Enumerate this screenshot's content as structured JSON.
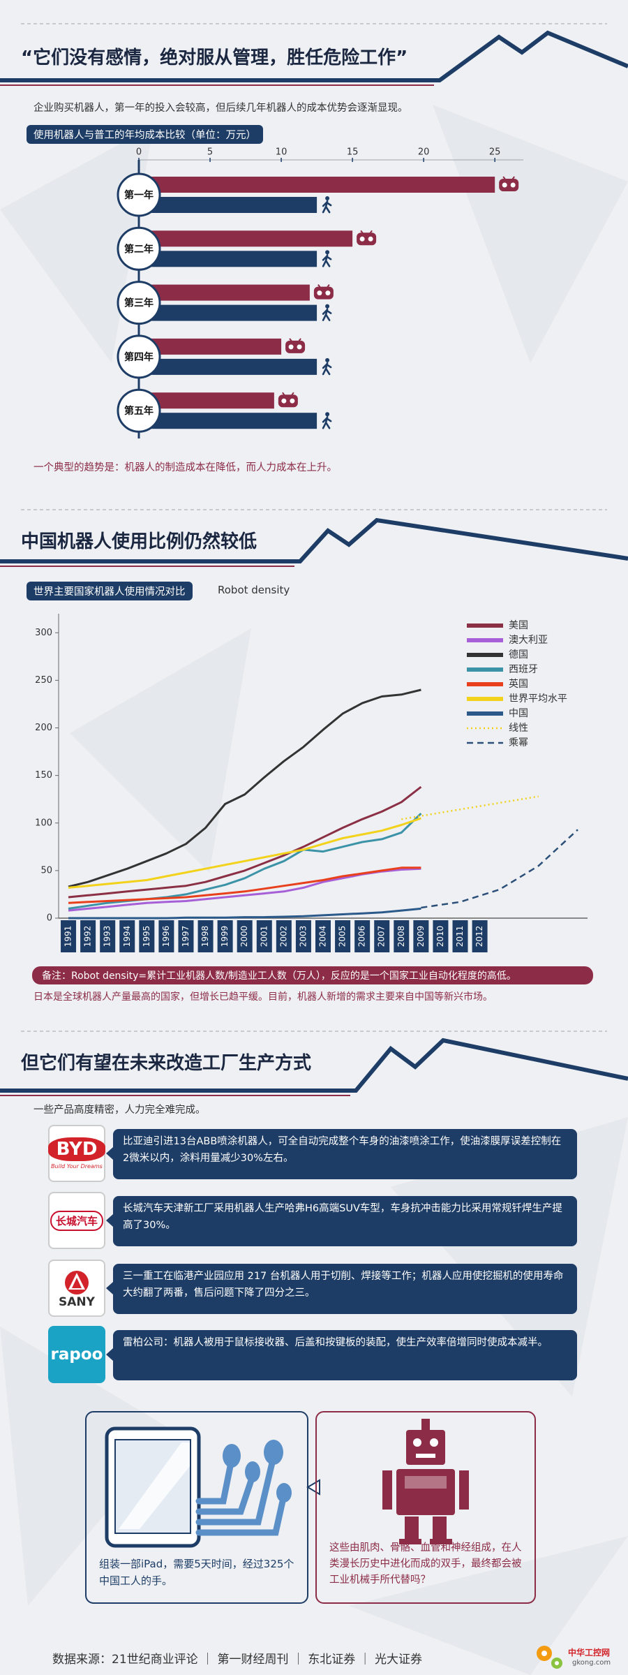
{
  "sections": [
    {
      "heading": "“它们没有感情，绝对服从管理，胜任危险工作”",
      "intro": "企业购买机器人，第一年的投入会较高，但后续几年机器人的成本优势会逐渐显现。",
      "note": "一个典型的趋势是：机器人的制造成本在降低，而人力成本在上升。"
    },
    {
      "heading": "中国机器人使用比例仍然较低",
      "notes": [
        "备注：Robot density=累计工业机器人数/制造业工人数（万人），反应的是一个国家工业自动化程度的高低。",
        "日本是全球机器人产量最高的国家，但增长已趋平缓。目前，机器人新增的需求主要来自中国等新兴市场。"
      ]
    },
    {
      "heading": "但它们有望在未来改造工厂生产方式",
      "intro": "一些产品高度精密，人力完全难完成。",
      "items": [
        {
          "logo": "BYD",
          "logo_sub": "Build Your Dreams",
          "text": "比亚迪引进13台ABB喷涂机器人，可全自动完成整个车身的油漆喷涂工作，使油漆膜厚误差控制在2微米以内，涂料用量减少30%左右。"
        },
        {
          "logo": "长城汽车",
          "text": "长城汽车天津新工厂采用机器人生产哈弗H6高端SUV车型，车身抗冲击能力比采用常规钎焊生产提高了30%。"
        },
        {
          "logo": "SANY",
          "text": "三一重工在临港产业园应用 217 台机器人用于切削、焊接等工作；机器人应用使挖掘机的使用寿命大约翻了两番，售后问题下降了四分之三。"
        },
        {
          "logo": "rapoo",
          "text": "雷柏公司：机器人被用于鼠标接收器、后盖和按键板的装配，使生产效率倍增同时使成本减半。"
        }
      ]
    }
  ],
  "panels": [
    {
      "text": "组装一部iPad，需要5天时间，经过325个中国工人的手。"
    },
    {
      "text": "这些由肌肉、骨骼、血管和神经组成，在人类漫长历史中进化而成的双手，最终都会被工业机械手所代替吗？"
    }
  ],
  "footer": "数据来源：21世纪商业评论 ｜ 第一财经周刊 ｜ 东北证券 ｜ 光大证券",
  "watermark": [
    "中华工控网",
    "gkong.com"
  ],
  "chart_data": [
    {
      "type": "bar",
      "orientation": "horizontal",
      "title": "使用机器人与普工的年均成本比较（单位：万元）",
      "categories": [
        "第一年",
        "第二年",
        "第三年",
        "第四年",
        "第五年"
      ],
      "series": [
        {
          "color": "#8c2c47",
          "values": [
            25,
            15,
            12,
            10,
            9.5
          ]
        },
        {
          "color": "#1e3d66",
          "values": [
            12.5,
            12.5,
            12.5,
            12.5,
            12.5
          ]
        }
      ],
      "xlim": [
        0,
        27
      ],
      "xticks": [
        0,
        5,
        10,
        15,
        20,
        25
      ]
    },
    {
      "type": "line",
      "title": "世界主要国家机器人使用情况对比",
      "subtitle": "Robot density",
      "x": [
        1991,
        1992,
        1993,
        1994,
        1995,
        1996,
        1997,
        1998,
        1999,
        2000,
        2001,
        2002,
        2003,
        2004,
        2005,
        2006,
        2007,
        2008,
        2009
      ],
      "series": [
        {
          "name": "美国",
          "color": "#8b2f45",
          "values": [
            22,
            24,
            26,
            28,
            30,
            32,
            34,
            38,
            44,
            50,
            58,
            66,
            75,
            85,
            95,
            104,
            112,
            122,
            138
          ]
        },
        {
          "name": "澳大利亚",
          "color": "#a65fd6",
          "values": [
            8,
            10,
            12,
            14,
            16,
            17,
            18,
            20,
            22,
            24,
            26,
            28,
            32,
            38,
            42,
            46,
            49,
            51,
            52
          ]
        },
        {
          "name": "德国",
          "color": "#333333",
          "values": [
            33,
            38,
            45,
            52,
            60,
            68,
            78,
            95,
            120,
            130,
            148,
            165,
            180,
            198,
            215,
            226,
            233,
            235,
            240
          ]
        },
        {
          "name": "西班牙",
          "color": "#3c93a8",
          "values": [
            10,
            13,
            16,
            18,
            20,
            22,
            25,
            30,
            35,
            42,
            52,
            60,
            72,
            70,
            75,
            80,
            83,
            90,
            110
          ]
        },
        {
          "name": "英国",
          "color": "#e8401c",
          "values": [
            16,
            17,
            18,
            19,
            20,
            21,
            22,
            24,
            26,
            28,
            31,
            34,
            37,
            40,
            44,
            47,
            50,
            53,
            53
          ]
        },
        {
          "name": "世界平均水平",
          "color": "#f2d21b",
          "values": [
            32,
            34,
            36,
            38,
            40,
            44,
            48,
            52,
            56,
            60,
            64,
            68,
            72,
            78,
            84,
            88,
            92,
            98,
            105
          ]
        },
        {
          "name": "中国",
          "color": "#2b5a8a",
          "values": [
            0,
            0,
            0,
            0,
            0,
            0,
            0.5,
            0.5,
            0.5,
            1,
            1,
            1.5,
            2,
            3,
            4,
            5,
            6,
            8,
            10
          ]
        },
        {
          "name": "线性",
          "color": "#f2d21b",
          "dash": "dotted",
          "x": [
            2008,
            2015
          ],
          "values": [
            104,
            128
          ]
        },
        {
          "name": "乘幂",
          "color": "#2b4f78",
          "dash": "dashed",
          "x": [
            2009,
            2011,
            2013,
            2015,
            2017
          ],
          "values": [
            11,
            17,
            30,
            55,
            93
          ]
        }
      ],
      "xlim": [
        1990.5,
        2017.5
      ],
      "xticks": [
        1991,
        1992,
        1993,
        1994,
        1995,
        1996,
        1997,
        1998,
        1999,
        2000,
        2001,
        2002,
        2003,
        2004,
        2005,
        2006,
        2007,
        2008,
        2009,
        2010,
        2011,
        2012
      ],
      "ylim": [
        0,
        320
      ],
      "yticks": [
        0,
        50,
        100,
        150,
        200,
        250,
        300
      ],
      "legend": "top-right"
    }
  ]
}
